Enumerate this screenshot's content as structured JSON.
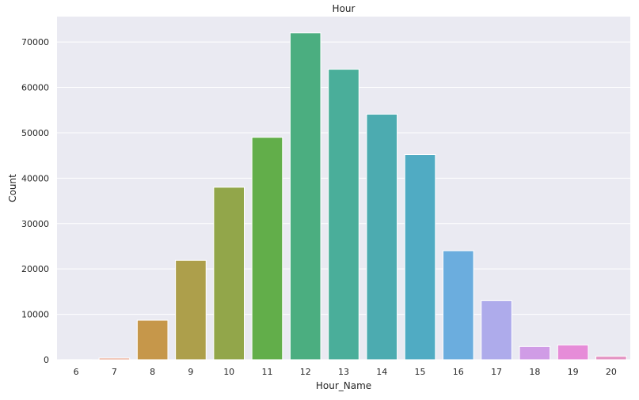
{
  "chart_data": {
    "type": "bar",
    "title": "Hour",
    "xlabel": "Hour_Name",
    "ylabel": "Count",
    "categories": [
      "6",
      "7",
      "8",
      "9",
      "10",
      "11",
      "12",
      "13",
      "14",
      "15",
      "16",
      "17",
      "18",
      "19",
      "20"
    ],
    "values": [
      20,
      350,
      8700,
      21900,
      38000,
      49000,
      72000,
      64000,
      54100,
      45200,
      24000,
      13000,
      2900,
      3250,
      750
    ],
    "colors": [
      "#f57f7a",
      "#e4967a",
      "#c6974a",
      "#ad9f4b",
      "#92a64a",
      "#62ae4a",
      "#4bae80",
      "#4aae9a",
      "#4cabb0",
      "#50abc3",
      "#6badde",
      "#aeabeb",
      "#d09ce6",
      "#e68cd8",
      "#e493c3"
    ],
    "yticks": [
      0,
      10000,
      20000,
      30000,
      40000,
      50000,
      60000,
      70000
    ],
    "ylim": [
      0,
      75600
    ],
    "grid": true,
    "legend": null,
    "background": "#eaeaf2",
    "grid_color": "#ffffff"
  }
}
